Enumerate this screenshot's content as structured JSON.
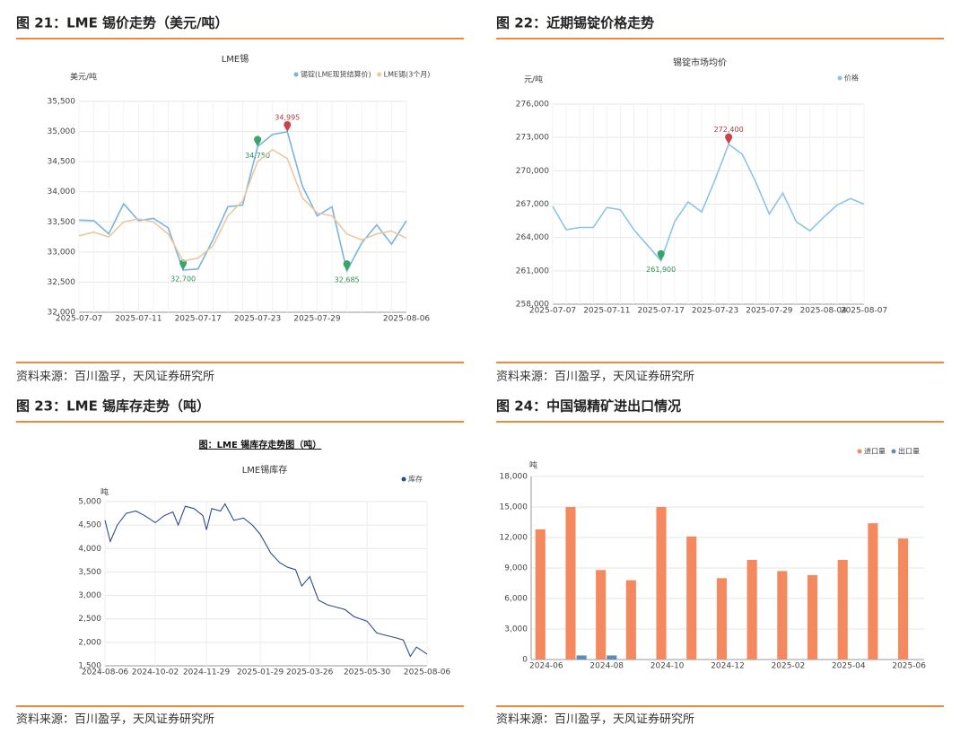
{
  "chart_data": [
    {
      "heading": "图 21：LME 锡价走势（美元/吨）",
      "source": "资料来源：百川盈孚，天风证券研究所",
      "type": "line",
      "title": "LME锡",
      "y_label": "美元/吨",
      "categories": [
        "2025-07-07",
        null,
        null,
        null,
        "2025-07-11",
        null,
        null,
        null,
        "2025-07-17",
        null,
        null,
        null,
        "2025-07-23",
        null,
        null,
        null,
        "2025-07-29",
        null,
        null,
        null,
        null,
        null,
        "2025-08-06"
      ],
      "series": [
        {
          "name": "锡锭(LME现货结算价)",
          "color": "#7ab3de",
          "values": [
            33530,
            33520,
            33300,
            33800,
            33520,
            33560,
            33400,
            32700,
            32720,
            33200,
            33750,
            33780,
            34750,
            34950,
            34995,
            34100,
            33600,
            33750,
            32685,
            33150,
            33450,
            33130,
            33520
          ],
          "value_labels": [
            null,
            null,
            null,
            null,
            null,
            null,
            null,
            "32,700",
            null,
            null,
            null,
            null,
            "34,750",
            null,
            "34,995",
            null,
            null,
            null,
            "32,685",
            null,
            null,
            null,
            null
          ]
        },
        {
          "name": "LME锡(3个月)",
          "color": "#e9c9a0",
          "values": [
            33270,
            33330,
            33250,
            33500,
            33550,
            33500,
            33300,
            32850,
            32900,
            33100,
            33600,
            33850,
            34500,
            34700,
            34550,
            33900,
            33650,
            33600,
            33300,
            33200,
            33300,
            33350,
            33230
          ]
        }
      ],
      "ylim": [
        32000,
        35500
      ],
      "yticks": [
        {
          "value": 32000,
          "label": "32,000"
        },
        {
          "value": 32500,
          "label": "32,500"
        },
        {
          "value": 33000,
          "label": "33,000"
        },
        {
          "value": 33500,
          "label": "33,500"
        },
        {
          "value": 34000,
          "label": "34,000"
        },
        {
          "value": 34500,
          "label": "34,500"
        },
        {
          "value": 35000,
          "label": "35,000"
        },
        {
          "value": 35500,
          "label": "35,500"
        }
      ],
      "grid": true
    },
    {
      "heading": "图 22：近期锡锭价格走势",
      "source": "资料来源：百川盈孚，天风证券研究所",
      "type": "line",
      "title": "锡锭市场均价",
      "y_label": "元/吨",
      "categories": [
        "2025-07-07",
        null,
        null,
        null,
        "2025-07-11",
        null,
        null,
        null,
        "2025-07-17",
        null,
        null,
        null,
        "2025-07-23",
        null,
        null,
        null,
        "2025-07-29",
        null,
        null,
        null,
        "2025-08-04",
        null,
        null,
        "2025-08-07"
      ],
      "series": [
        {
          "name": "价格",
          "color": "#8cc4e8",
          "values": [
            266800,
            264700,
            264900,
            264900,
            266700,
            266500,
            264700,
            263300,
            261900,
            265400,
            267200,
            266300,
            269200,
            272400,
            271500,
            269000,
            266100,
            268000,
            265400,
            264600,
            265800,
            266900,
            267500,
            267000
          ],
          "value_labels": [
            null,
            null,
            null,
            null,
            null,
            null,
            null,
            null,
            "261,900",
            null,
            null,
            null,
            null,
            "272,400",
            null,
            null,
            null,
            null,
            null,
            null,
            null,
            null,
            null,
            null
          ]
        }
      ],
      "ylim": [
        258000,
        276000
      ],
      "yticks": [
        {
          "value": 258000,
          "label": "258,000"
        },
        {
          "value": 261000,
          "label": "261,000"
        },
        {
          "value": 264000,
          "label": "264,000"
        },
        {
          "value": 267000,
          "label": "267,000"
        },
        {
          "value": 270000,
          "label": "270,000"
        },
        {
          "value": 273000,
          "label": "273,000"
        },
        {
          "value": 276000,
          "label": "276,000"
        }
      ],
      "grid": true
    },
    {
      "heading": "图 23：LME 锡库存走势（吨）",
      "source": "资料来源：百川盈孚，天风证券研究所",
      "type": "line",
      "subtitle": "图：LME 锡库存走势图（吨）",
      "title": "LME锡库存",
      "y_label": "吨",
      "x": [
        "2024-08-06",
        "2024-08-12",
        "2024-08-20",
        "2024-08-30",
        "2024-09-10",
        "2024-09-20",
        "2024-10-02",
        "2024-10-12",
        "2024-10-22",
        "2024-10-28",
        "2024-11-05",
        "2024-11-15",
        "2024-11-25",
        "2024-11-29",
        "2024-12-05",
        "2024-12-15",
        "2024-12-20",
        "2024-12-30",
        "2025-01-10",
        "2025-01-20",
        "2025-01-29",
        "2025-02-10",
        "2025-02-20",
        "2025-03-01",
        "2025-03-10",
        "2025-03-17",
        "2025-03-26",
        "2025-04-05",
        "2025-04-15",
        "2025-04-25",
        "2025-05-05",
        "2025-05-15",
        "2025-05-30",
        "2025-06-10",
        "2025-06-20",
        "2025-07-01",
        "2025-07-10",
        "2025-07-18",
        "2025-07-25",
        "2025-08-06"
      ],
      "series": [
        {
          "name": "库存",
          "color": "#2f4b8f",
          "values": [
            4600,
            4150,
            4500,
            4750,
            4800,
            4700,
            4550,
            4700,
            4780,
            4500,
            4900,
            4850,
            4700,
            4400,
            4850,
            4800,
            4950,
            4600,
            4650,
            4500,
            4300,
            3900,
            3700,
            3600,
            3550,
            3200,
            3400,
            2900,
            2800,
            2750,
            2700,
            2550,
            2450,
            2200,
            2150,
            2100,
            2050,
            1700,
            1900,
            1750
          ]
        }
      ],
      "xlim": [
        "2024-08-06",
        "2025-08-06"
      ],
      "xticks": [
        "2024-08-06",
        "2024-10-02",
        "2024-11-29",
        "2025-01-29",
        "2025-03-26",
        "2025-05-30",
        "2025-08-06"
      ],
      "ylim": [
        1500,
        5000
      ],
      "yticks": [
        {
          "value": 1500,
          "label": "1,500"
        },
        {
          "value": 2000,
          "label": "2,000"
        },
        {
          "value": 2500,
          "label": "2,500"
        },
        {
          "value": 3000,
          "label": "3,000"
        },
        {
          "value": 3500,
          "label": "3,500"
        },
        {
          "value": 4000,
          "label": "4,000"
        },
        {
          "value": 4500,
          "label": "4,500"
        },
        {
          "value": 5000,
          "label": "5,000"
        }
      ],
      "grid": true
    },
    {
      "heading": "图 24：中国锡精矿进出口情况",
      "source": "资料来源：百川盈孚，天风证券研究所",
      "type": "bar",
      "y_label": "吨",
      "categories": [
        "2024-06",
        null,
        "2024-08",
        null,
        "2024-10",
        null,
        "2024-12",
        null,
        "2025-02",
        null,
        "2025-04",
        null,
        "2025-06"
      ],
      "series": [
        {
          "name": "进口量",
          "color": "#f4895f",
          "values": [
            12800,
            15000,
            8800,
            7800,
            15000,
            12100,
            8000,
            9800,
            8700,
            8300,
            9800,
            13400,
            11900
          ]
        },
        {
          "name": "出口量",
          "color": "#5b8db8",
          "values": [
            null,
            400,
            400,
            null,
            null,
            null,
            null,
            null,
            null,
            null,
            null,
            null,
            null
          ]
        }
      ],
      "ylim": [
        0,
        18000
      ],
      "yticks": [
        0,
        {
          "value": 3000,
          "label": "3,000"
        },
        {
          "value": 6000,
          "label": "6,000"
        },
        {
          "value": 9000,
          "label": "9,000"
        },
        {
          "value": 12000,
          "label": "12,000"
        },
        {
          "value": 15000,
          "label": "15,000"
        },
        {
          "value": 18000,
          "label": "18,000"
        }
      ],
      "grid": true
    }
  ]
}
